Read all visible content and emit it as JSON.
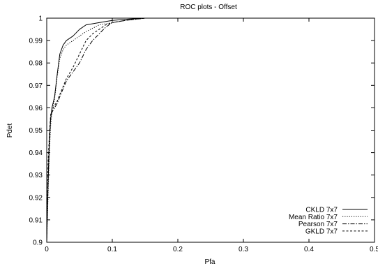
{
  "chart_data": {
    "type": "line",
    "title": "ROC plots - Offset",
    "xlabel": "Pfa",
    "ylabel": "Pdet",
    "xlim": [
      0,
      0.5
    ],
    "ylim": [
      0.9,
      1.0
    ],
    "grid": false,
    "legend_position": "bottom-right",
    "x_ticks": [
      0,
      0.1,
      0.2,
      0.3,
      0.4,
      0.5
    ],
    "x_tick_labels": [
      "0",
      "0.1",
      "0.2",
      "0.3",
      "0.4",
      "0.5"
    ],
    "y_ticks": [
      0.9,
      0.91,
      0.92,
      0.93,
      0.94,
      0.95,
      0.96,
      0.97,
      0.98,
      0.99,
      1.0
    ],
    "y_tick_labels": [
      "0.9",
      "0.91",
      "0.92",
      "0.93",
      "0.94",
      "0.95",
      "0.96",
      "0.97",
      "0.98",
      "0.99",
      "1"
    ],
    "series": [
      {
        "name": "CKLD 7x7",
        "dash": "solid",
        "x": [
          0.0,
          0.002,
          0.004,
          0.006,
          0.008,
          0.012,
          0.016,
          0.02,
          0.025,
          0.03,
          0.04,
          0.05,
          0.06,
          0.08,
          0.1,
          0.12,
          0.15,
          0.2,
          0.3,
          0.5
        ],
        "y": [
          0.9,
          0.925,
          0.945,
          0.955,
          0.96,
          0.965,
          0.975,
          0.984,
          0.988,
          0.99,
          0.992,
          0.995,
          0.997,
          0.998,
          0.999,
          0.9995,
          1.0,
          1.0,
          1.0,
          1.0
        ]
      },
      {
        "name": "Mean Ratio 7x7",
        "dash": "dotted",
        "x": [
          0.0,
          0.002,
          0.004,
          0.006,
          0.008,
          0.012,
          0.016,
          0.02,
          0.025,
          0.03,
          0.04,
          0.05,
          0.06,
          0.08,
          0.1,
          0.12,
          0.15,
          0.2,
          0.3,
          0.5
        ],
        "y": [
          0.9,
          0.92,
          0.94,
          0.952,
          0.958,
          0.964,
          0.974,
          0.982,
          0.986,
          0.988,
          0.99,
          0.992,
          0.994,
          0.997,
          0.998,
          0.999,
          1.0,
          1.0,
          1.0,
          1.0
        ]
      },
      {
        "name": "Pearson 7x7",
        "dash": "dashdot",
        "x": [
          0.0,
          0.002,
          0.004,
          0.006,
          0.008,
          0.012,
          0.016,
          0.02,
          0.03,
          0.04,
          0.05,
          0.06,
          0.07,
          0.08,
          0.09,
          0.1,
          0.12,
          0.15,
          0.2,
          0.3,
          0.5
        ],
        "y": [
          0.9,
          0.93,
          0.945,
          0.956,
          0.958,
          0.96,
          0.962,
          0.965,
          0.972,
          0.976,
          0.98,
          0.986,
          0.99,
          0.993,
          0.996,
          0.998,
          0.999,
          1.0,
          1.0,
          1.0,
          1.0
        ]
      },
      {
        "name": "GKLD 7x7",
        "dash": "dashed",
        "x": [
          0.0,
          0.002,
          0.004,
          0.006,
          0.008,
          0.012,
          0.016,
          0.02,
          0.03,
          0.04,
          0.05,
          0.06,
          0.07,
          0.08,
          0.09,
          0.1,
          0.12,
          0.15,
          0.2,
          0.3,
          0.5
        ],
        "y": [
          0.9,
          0.935,
          0.948,
          0.957,
          0.959,
          0.961,
          0.963,
          0.966,
          0.973,
          0.978,
          0.984,
          0.99,
          0.993,
          0.995,
          0.997,
          0.998,
          0.999,
          1.0,
          1.0,
          1.0,
          1.0
        ]
      }
    ]
  }
}
